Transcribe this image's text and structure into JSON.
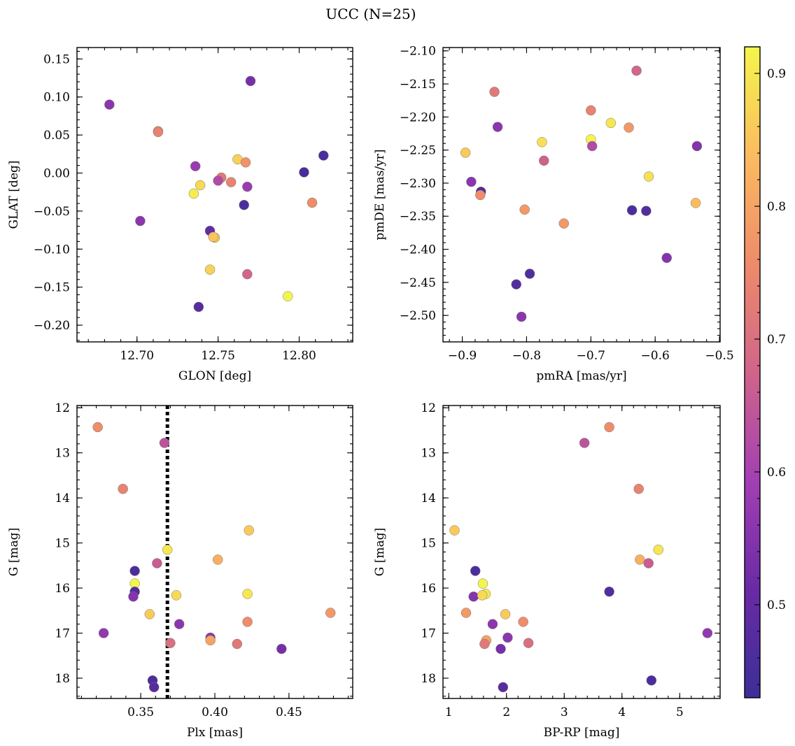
{
  "figure": {
    "title": "UCC (N=25)"
  },
  "colorbar": {
    "min": 0.43,
    "max": 0.92,
    "ticks": [
      0.5,
      0.6,
      0.7,
      0.8,
      0.9
    ],
    "tick_labels": [
      "0.5",
      "0.6",
      "0.7",
      "0.8",
      "0.9"
    ],
    "colormap": "plasma",
    "stops": [
      "#3b2f97",
      "#6a2aa6",
      "#a23fb3",
      "#d0648a",
      "#ee8b6a",
      "#fbbb5f",
      "#f4f54c"
    ]
  },
  "chart_data": [
    {
      "type": "scatter",
      "xlabel": "GLON [deg]",
      "ylabel": "GLAT [deg]",
      "xlim": [
        12.663,
        12.833
      ],
      "ylim": [
        -0.222,
        0.165
      ],
      "xticks": [
        12.7,
        12.75,
        12.8
      ],
      "xtick_labels": [
        "12.70",
        "12.75",
        "12.80"
      ],
      "xminor": 0.01,
      "yticks": [
        -0.2,
        -0.15,
        -0.1,
        -0.05,
        0.0,
        0.05,
        0.1,
        0.15
      ],
      "ytick_labels": [
        "−0.20",
        "−0.15",
        "−0.10",
        "−0.05",
        "0.00",
        "0.05",
        "0.10",
        "0.15"
      ],
      "yminor": 0.01,
      "x": [
        12.683,
        12.77,
        12.713,
        12.713,
        12.815,
        12.762,
        12.767,
        12.803,
        12.736,
        12.752,
        12.75,
        12.758,
        12.768,
        12.739,
        12.735,
        12.766,
        12.808,
        12.702,
        12.745,
        12.748,
        12.747,
        12.745,
        12.768,
        12.793,
        12.738
      ],
      "y": [
        0.09,
        0.121,
        0.055,
        0.054,
        0.023,
        0.018,
        0.014,
        0.001,
        0.009,
        -0.006,
        -0.01,
        -0.012,
        -0.018,
        -0.016,
        -0.027,
        -0.042,
        -0.039,
        -0.063,
        -0.076,
        -0.085,
        -0.084,
        -0.127,
        -0.133,
        -0.162,
        -0.176
      ],
      "color": [
        0.56,
        0.53,
        0.78,
        0.74,
        0.46,
        0.87,
        0.77,
        0.45,
        0.58,
        0.72,
        0.62,
        0.74,
        0.58,
        0.88,
        0.91,
        0.46,
        0.76,
        0.56,
        0.5,
        0.86,
        0.85,
        0.87,
        0.68,
        0.92,
        0.48
      ]
    },
    {
      "type": "scatter",
      "xlabel": "pmRA [mas/yr]",
      "ylabel": "pmDE [mas/yr]",
      "xlim": [
        -0.93,
        -0.499
      ],
      "ylim": [
        -2.54,
        -2.095
      ],
      "xticks": [
        -0.9,
        -0.8,
        -0.7,
        -0.6,
        -0.5
      ],
      "xtick_labels": [
        "−0.9",
        "−0.8",
        "−0.7",
        "−0.6",
        "−0.5"
      ],
      "xminor": 0.02,
      "yticks": [
        -2.5,
        -2.45,
        -2.4,
        -2.35,
        -2.3,
        -2.25,
        -2.2,
        -2.15,
        -2.1
      ],
      "ytick_labels": [
        "−2.50",
        "−2.45",
        "−2.40",
        "−2.35",
        "−2.30",
        "−2.25",
        "−2.20",
        "−2.15",
        "−2.10"
      ],
      "yminor": 0.01,
      "x": [
        -0.629,
        -0.85,
        -0.7,
        -0.669,
        -0.641,
        -0.845,
        -0.7,
        -0.776,
        -0.698,
        -0.895,
        -0.535,
        -0.773,
        -0.61,
        -0.886,
        -0.871,
        -0.872,
        -0.537,
        -0.803,
        -0.636,
        -0.614,
        -0.742,
        -0.582,
        -0.795,
        -0.816,
        -0.808
      ],
      "y": [
        -2.13,
        -2.162,
        -2.19,
        -2.209,
        -2.216,
        -2.215,
        -2.234,
        -2.238,
        -2.244,
        -2.254,
        -2.244,
        -2.266,
        -2.29,
        -2.298,
        -2.313,
        -2.318,
        -2.33,
        -2.34,
        -2.341,
        -2.342,
        -2.361,
        -2.413,
        -2.437,
        -2.453,
        -2.502
      ],
      "color": [
        0.68,
        0.72,
        0.74,
        0.9,
        0.78,
        0.56,
        0.92,
        0.89,
        0.62,
        0.86,
        0.55,
        0.67,
        0.89,
        0.56,
        0.46,
        0.76,
        0.84,
        0.78,
        0.46,
        0.47,
        0.78,
        0.55,
        0.47,
        0.47,
        0.56
      ]
    },
    {
      "type": "scatter",
      "xlabel": "Plx [mas]",
      "ylabel": "G [mag]",
      "xlim": [
        0.307,
        0.493
      ],
      "ylim": [
        18.45,
        11.95
      ],
      "xticks": [
        0.35,
        0.4,
        0.45
      ],
      "xtick_labels": [
        "0.35",
        "0.40",
        "0.45"
      ],
      "xminor": 0.01,
      "yticks": [
        12,
        13,
        14,
        15,
        16,
        17,
        18
      ],
      "ytick_labels": [
        "12",
        "13",
        "14",
        "15",
        "16",
        "17",
        "18"
      ],
      "yminor": 0.2,
      "vline": 0.368,
      "x": [
        0.321,
        0.366,
        0.338,
        0.423,
        0.368,
        0.402,
        0.361,
        0.346,
        0.346,
        0.422,
        0.346,
        0.345,
        0.374,
        0.356,
        0.478,
        0.422,
        0.325,
        0.376,
        0.397,
        0.397,
        0.37,
        0.415,
        0.445,
        0.358,
        0.359
      ],
      "y": [
        12.43,
        12.78,
        13.8,
        14.72,
        15.15,
        15.37,
        15.45,
        15.62,
        15.9,
        16.13,
        16.08,
        16.19,
        16.16,
        16.58,
        16.55,
        16.75,
        17.0,
        16.8,
        17.1,
        17.16,
        17.22,
        17.24,
        17.35,
        18.05,
        18.2
      ],
      "color": [
        0.76,
        0.64,
        0.74,
        0.86,
        0.9,
        0.82,
        0.66,
        0.46,
        0.92,
        0.9,
        0.47,
        0.55,
        0.88,
        0.86,
        0.78,
        0.76,
        0.57,
        0.56,
        0.56,
        0.8,
        0.7,
        0.72,
        0.53,
        0.46,
        0.48
      ]
    },
    {
      "type": "scatter",
      "xlabel": "BP-RP [mag]",
      "ylabel": "G [mag]",
      "xlim": [
        0.9,
        5.7
      ],
      "ylim": [
        18.45,
        11.95
      ],
      "xticks": [
        1,
        2,
        3,
        4,
        5
      ],
      "xtick_labels": [
        "1",
        "2",
        "3",
        "4",
        "5"
      ],
      "xminor": 0.2,
      "yticks": [
        12,
        13,
        14,
        15,
        16,
        17,
        18
      ],
      "ytick_labels": [
        "12",
        "13",
        "14",
        "15",
        "16",
        "17",
        "18"
      ],
      "yminor": 0.2,
      "x": [
        3.78,
        3.35,
        4.29,
        1.1,
        4.63,
        4.31,
        4.46,
        1.46,
        1.59,
        1.64,
        3.78,
        1.43,
        1.58,
        1.3,
        1.98,
        2.29,
        5.48,
        1.76,
        2.02,
        1.65,
        2.38,
        1.62,
        1.9,
        4.51,
        1.94
      ],
      "y": [
        12.43,
        12.78,
        13.8,
        14.72,
        15.15,
        15.37,
        15.45,
        15.62,
        15.9,
        16.13,
        16.08,
        16.19,
        16.16,
        16.55,
        16.58,
        16.75,
        17.0,
        16.8,
        17.1,
        17.16,
        17.22,
        17.24,
        17.35,
        18.05,
        18.2
      ],
      "color": [
        0.76,
        0.64,
        0.74,
        0.86,
        0.9,
        0.82,
        0.66,
        0.46,
        0.92,
        0.9,
        0.47,
        0.55,
        0.88,
        0.78,
        0.86,
        0.76,
        0.57,
        0.56,
        0.56,
        0.8,
        0.7,
        0.72,
        0.53,
        0.46,
        0.48
      ]
    }
  ]
}
